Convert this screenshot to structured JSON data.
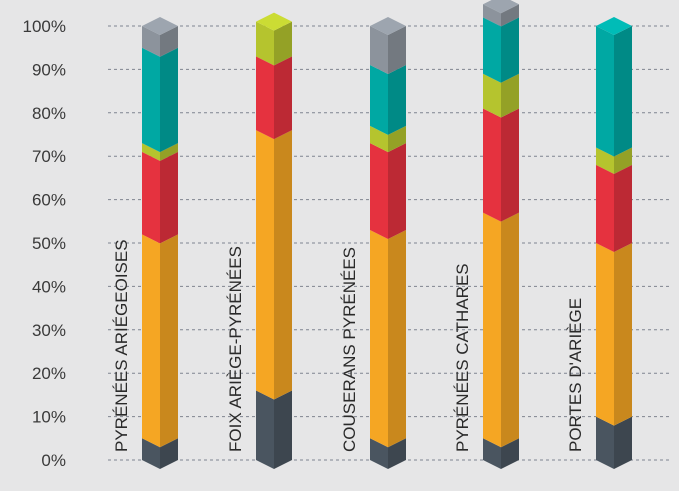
{
  "chart_data": {
    "type": "bar",
    "stacked": true,
    "style": "isometric 3D stacked bars, 100% scale",
    "ylim": [
      0,
      100
    ],
    "y_ticks": [
      "0%",
      "10%",
      "20%",
      "30%",
      "40%",
      "50%",
      "60%",
      "70%",
      "80%",
      "90%",
      "100%"
    ],
    "grid": true,
    "categories": [
      "PYRÉNÉES ARIÉGEOISES",
      "FOIX ARIÈGE-PYRÉNÉES",
      "COUSERANS PYRÉNÉES",
      "PYRÉNÉES CATHARES",
      "PORTES D'ARIÈGE"
    ],
    "series": [
      {
        "color": "#4a5560",
        "values": [
          5,
          16,
          5,
          5,
          10
        ]
      },
      {
        "color": "#f5a623",
        "values": [
          47,
          60,
          48,
          52,
          40
        ]
      },
      {
        "color": "#e5323f",
        "values": [
          19,
          17,
          20,
          24,
          18
        ]
      },
      {
        "color": "#b5c42e",
        "values": [
          2,
          8,
          4,
          8,
          4
        ]
      },
      {
        "color": "#00a8a3",
        "values": [
          22,
          0,
          14,
          13,
          28
        ]
      },
      {
        "color": "#8c939c",
        "values": [
          5,
          0,
          9,
          3,
          0
        ]
      }
    ]
  }
}
